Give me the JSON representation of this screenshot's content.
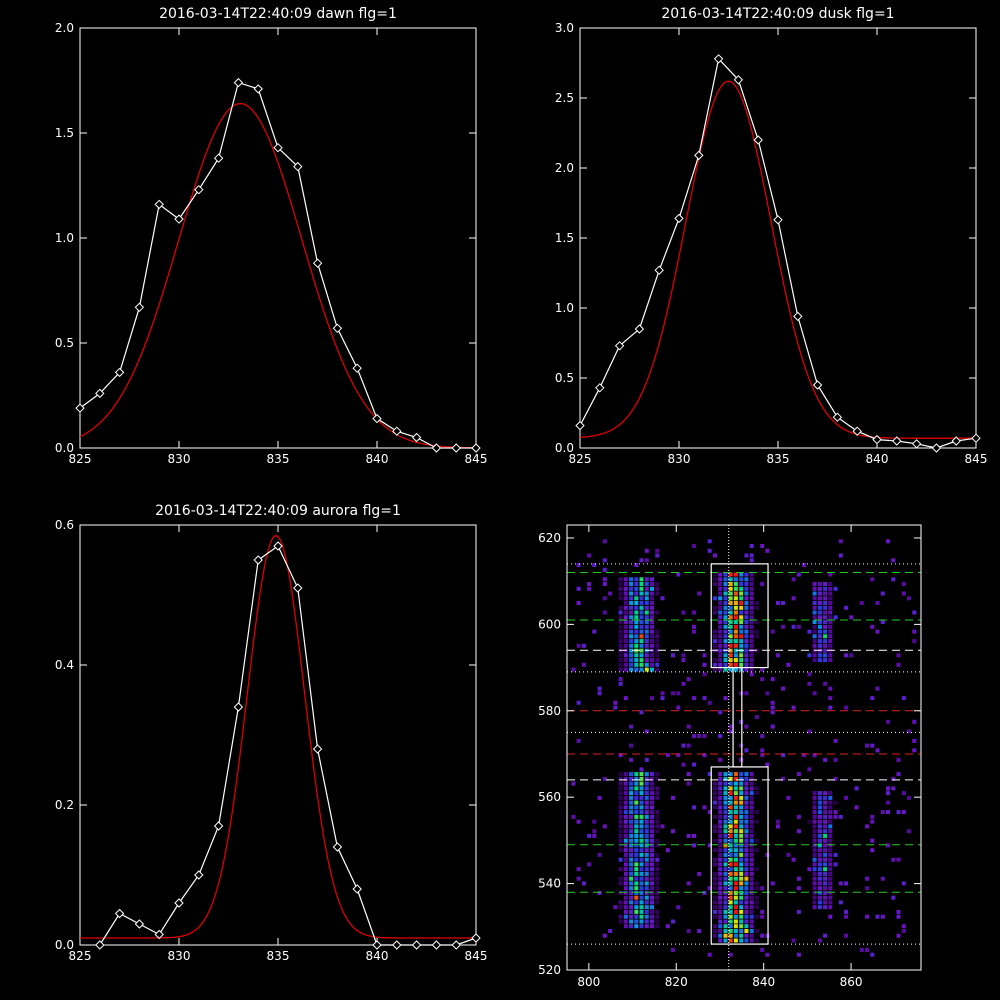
{
  "colors": {
    "background": "#000000",
    "data": "#ffffff",
    "fit": "#dd0000",
    "green_guides": "#22cc22",
    "red_guides": "#dd2222"
  },
  "chart_data": [
    {
      "type": "line",
      "title": "2016-03-14T22:40:09 dawn flg=1",
      "xlim": [
        825,
        845
      ],
      "ylim": [
        0,
        2.0
      ],
      "xticks": [
        825,
        830,
        835,
        840,
        845
      ],
      "yticks": [
        0,
        0.5,
        1.0,
        1.5,
        2.0
      ],
      "ytick_labels": [
        "0.0",
        "0.5",
        "1.0",
        "1.5",
        "2.0"
      ],
      "x": [
        825,
        826,
        827,
        828,
        829,
        830,
        831,
        832,
        833,
        834,
        835,
        836,
        837,
        838,
        839,
        840,
        841,
        842,
        843,
        844,
        845
      ],
      "y": [
        0.19,
        0.26,
        0.36,
        0.67,
        1.16,
        1.09,
        1.23,
        1.38,
        1.74,
        1.71,
        1.43,
        1.34,
        0.88,
        0.57,
        0.38,
        0.14,
        0.08,
        0.05,
        0.0,
        -0.01,
        0.0
      ],
      "fit": {
        "amplitude": 1.64,
        "center": 833.1,
        "sigma": 3.1,
        "offset": 0.0
      }
    },
    {
      "type": "line",
      "title": "2016-03-14T22:40:09 dusk flg=1",
      "xlim": [
        825,
        845
      ],
      "ylim": [
        0,
        3.0
      ],
      "xticks": [
        825,
        830,
        835,
        840,
        845
      ],
      "yticks": [
        0,
        0.5,
        1.0,
        1.5,
        2.0,
        2.5,
        3.0
      ],
      "ytick_labels": [
        "0.0",
        "0.5",
        "1.0",
        "1.5",
        "2.0",
        "2.5",
        "3.0"
      ],
      "x": [
        825,
        826,
        827,
        828,
        829,
        830,
        831,
        832,
        833,
        834,
        835,
        836,
        837,
        838,
        839,
        840,
        841,
        842,
        843,
        844,
        845
      ],
      "y": [
        0.16,
        0.43,
        0.73,
        0.85,
        1.27,
        1.64,
        2.09,
        2.78,
        2.63,
        2.2,
        1.63,
        0.94,
        0.45,
        0.22,
        0.12,
        0.06,
        0.05,
        0.03,
        0.0,
        0.05,
        0.07
      ],
      "fit": {
        "amplitude": 2.55,
        "center": 832.5,
        "sigma": 2.15,
        "offset": 0.07
      }
    },
    {
      "type": "line",
      "title": "2016-03-14T22:40:09 aurora flg=1",
      "xlim": [
        825,
        845
      ],
      "ylim": [
        0,
        0.6
      ],
      "xticks": [
        825,
        830,
        835,
        840,
        845
      ],
      "yticks": [
        0,
        0.2,
        0.4,
        0.6
      ],
      "ytick_labels": [
        "0.0",
        "0.2",
        "0.4",
        "0.6"
      ],
      "x": [
        826,
        827,
        828,
        829,
        830,
        831,
        832,
        833,
        834,
        835,
        836,
        837,
        838,
        839,
        840,
        841,
        842,
        843,
        844,
        845
      ],
      "y": [
        0.0,
        0.045,
        0.03,
        0.015,
        0.06,
        0.1,
        0.17,
        0.34,
        0.55,
        0.57,
        0.51,
        0.28,
        0.14,
        0.08,
        0.0,
        0.0,
        0.0,
        0.0,
        0.0,
        0.01
      ],
      "fit": {
        "amplitude": 0.575,
        "center": 834.9,
        "sigma": 1.45,
        "offset": 0.01
      }
    },
    {
      "type": "heatmap",
      "title": "",
      "xlim": [
        795,
        876
      ],
      "ylim": [
        520,
        623
      ],
      "xticks": [
        800,
        820,
        840,
        860
      ],
      "yticks": [
        520,
        540,
        560,
        580,
        600,
        620
      ],
      "bright_columns": [
        {
          "x_center": 811,
          "y_ranges": [
            [
              589,
              612
            ],
            [
              530,
              566
            ]
          ]
        },
        {
          "x_center": 833,
          "y_ranges": [
            [
              590,
              613
            ],
            [
              527,
              566
            ]
          ]
        },
        {
          "x_center": 853,
          "y_ranges": [
            [
              592,
              610
            ],
            [
              535,
              562
            ]
          ]
        }
      ],
      "vertical_dotted_x": 832,
      "boxes": [
        {
          "x": [
            828,
            841
          ],
          "y": [
            590,
            614
          ]
        },
        {
          "x": [
            828,
            841
          ],
          "y": [
            526,
            567
          ]
        },
        {
          "x": [
            833,
            835
          ],
          "y": [
            567,
            590
          ]
        }
      ],
      "green_dashed_y": [
        612,
        601,
        549,
        538
      ],
      "white_dashed_y": [
        594,
        564
      ],
      "red_dashed_y": [
        580,
        570
      ],
      "white_dotted_y": [
        614,
        589,
        575,
        526
      ]
    }
  ]
}
